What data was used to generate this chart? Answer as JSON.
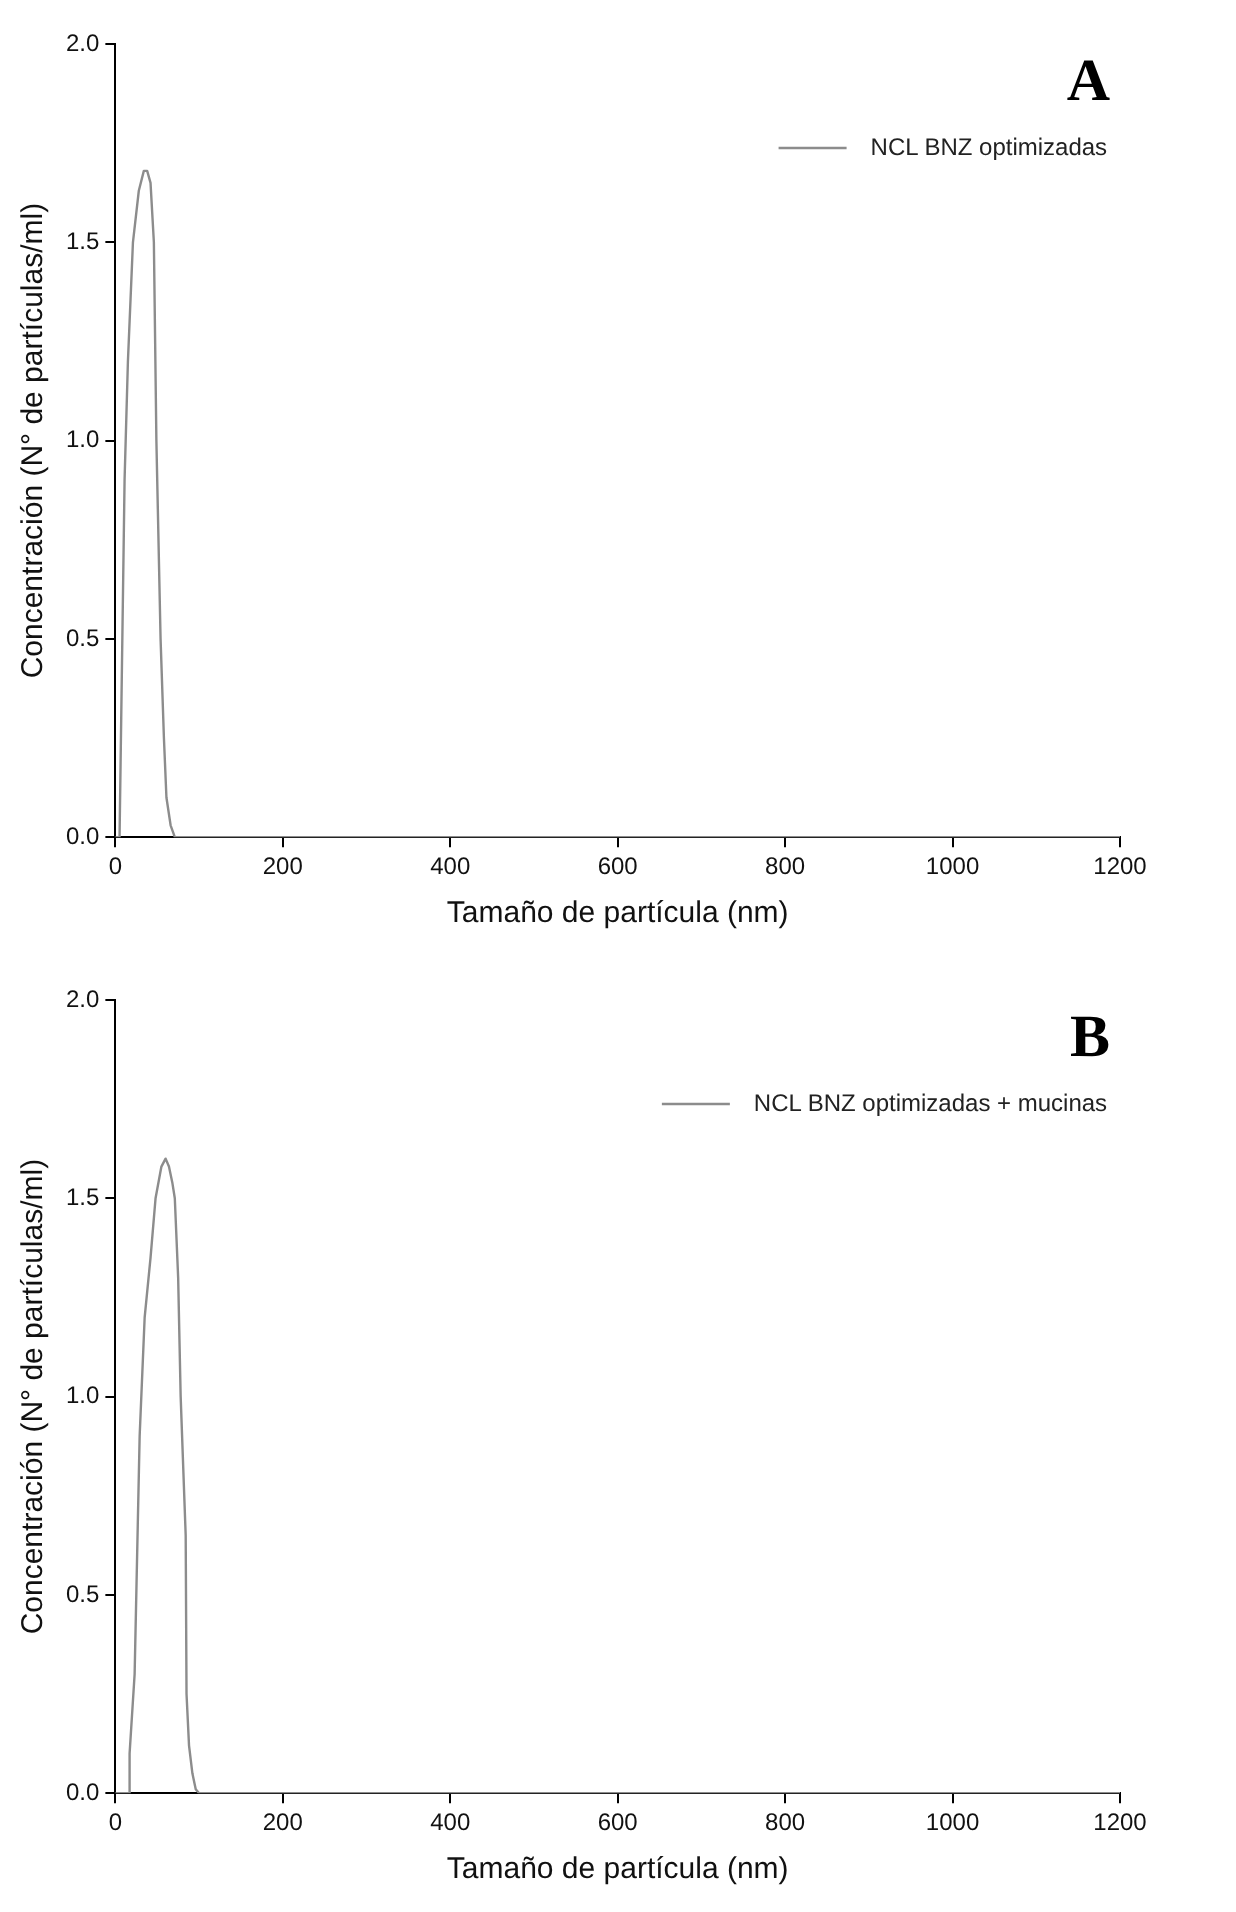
{
  "chart_data": [
    {
      "type": "line",
      "title": "A",
      "xlabel": "Tamaño de partícula (nm)",
      "ylabel": "Concentración (N° de partículas/ml)",
      "legend": "top right",
      "marker": "none",
      "xlim": [
        0,
        1200
      ],
      "xticks": [
        0,
        200,
        400,
        600,
        800,
        1000,
        1200
      ],
      "ylim": [
        0,
        2
      ],
      "yticks": [
        {
          "value": 0,
          "label": "0.0"
        },
        {
          "value": 0.5,
          "label": "0.5"
        },
        {
          "value": 1,
          "label": "1.0"
        },
        {
          "value": 1.5,
          "label": "1.5"
        },
        {
          "value": 2,
          "label": "2.0"
        }
      ],
      "series": [
        {
          "name": "NCL BNZ optimizadas",
          "color": "#8c8c8c",
          "x": [
            0,
            5,
            7,
            11,
            15,
            21,
            28,
            34,
            38,
            42,
            46,
            49,
            54,
            58,
            61,
            66,
            71,
            1200
          ],
          "values": [
            0,
            0,
            0.3,
            0.9,
            1.2,
            1.5,
            1.63,
            1.68,
            1.68,
            1.65,
            1.5,
            1.0,
            0.5,
            0.25,
            0.1,
            0.03,
            0,
            0
          ]
        }
      ]
    },
    {
      "type": "line",
      "title": "B",
      "xlabel": "Tamaño de partícula (nm)",
      "ylabel": "Concentración (N° de partículas/ml)",
      "legend": "top right",
      "marker": "none",
      "xlim": [
        0,
        1200
      ],
      "xticks": [
        0,
        200,
        400,
        600,
        800,
        1000,
        1200
      ],
      "ylim": [
        0,
        2
      ],
      "yticks": [
        {
          "value": 0,
          "label": "0.0"
        },
        {
          "value": 0.5,
          "label": "0.5"
        },
        {
          "value": 1,
          "label": "1.0"
        },
        {
          "value": 1.5,
          "label": "1.5"
        },
        {
          "value": 2,
          "label": "2.0"
        }
      ],
      "series": [
        {
          "name": "NCL BNZ optimizadas + mucinas",
          "color": "#8c8c8c",
          "x": [
            0,
            16,
            17,
            23,
            29,
            35,
            42,
            48,
            55,
            60,
            64,
            68,
            71,
            75,
            78,
            84,
            85,
            88,
            92,
            96,
            100,
            1200
          ],
          "values": [
            0,
            0,
            0.1,
            0.3,
            0.9,
            1.2,
            1.35,
            1.5,
            1.58,
            1.6,
            1.58,
            1.54,
            1.5,
            1.3,
            1.0,
            0.65,
            0.25,
            0.12,
            0.05,
            0.01,
            0,
            0
          ]
        }
      ]
    }
  ]
}
